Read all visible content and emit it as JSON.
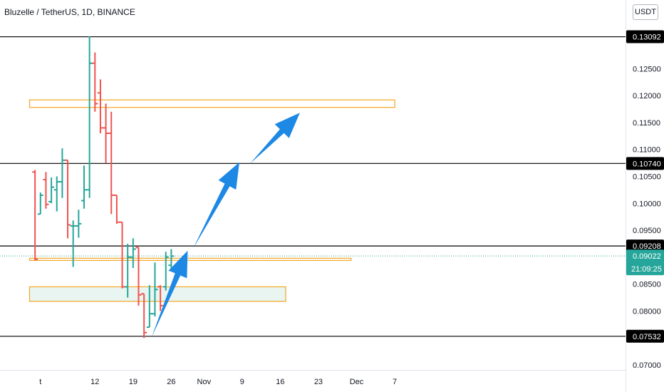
{
  "header": {
    "symbol_title": "Bluzelle / TetherUS, 1D, BINANCE",
    "currency": "USDT"
  },
  "colors": {
    "up": "#26a69a",
    "down": "#ef5350",
    "arrow": "#1e88e5",
    "zone_border": "#f5a623",
    "zone_fill": "#e8f5f0",
    "level_line": "#000000",
    "price_line": "#26a69a"
  },
  "price_badges": {
    "level_1": "0.13092",
    "level_2": "0.10740",
    "level_3": "0.09208",
    "current": "0.09022",
    "countdown": "21:09:25",
    "level_4": "0.07532"
  },
  "chart_data": {
    "type": "ohlc",
    "x_axis": {
      "tick_labels": [
        "t",
        "12",
        "19",
        "26",
        "Nov",
        "9",
        "16",
        "23",
        "Dec",
        "7"
      ],
      "tick_days": [
        2,
        12,
        19,
        26,
        32,
        39,
        46,
        53,
        60,
        67
      ]
    },
    "y_axis": {
      "ticks": [
        0.125,
        0.12,
        0.115,
        0.11,
        0.105,
        0.1,
        0.095,
        0.085,
        0.08,
        0.07
      ],
      "tick_labels": [
        "0.12500",
        "0.12000",
        "0.11500",
        "0.11000",
        "0.10500",
        "0.10000",
        "0.09500",
        "0.08500",
        "0.08000",
        "0.07000"
      ],
      "range": [
        0.0695,
        0.1325
      ]
    },
    "bars": [
      {
        "day": 1,
        "o": 0.1058,
        "h": 0.1062,
        "l": 0.0894,
        "c": 0.0896
      },
      {
        "day": 2,
        "o": 0.098,
        "h": 0.102,
        "l": 0.098,
        "c": 0.1015
      },
      {
        "day": 3,
        "o": 0.1044,
        "h": 0.1058,
        "l": 0.099,
        "c": 0.0998
      },
      {
        "day": 4,
        "o": 0.1003,
        "h": 0.1048,
        "l": 0.1,
        "c": 0.103
      },
      {
        "day": 5,
        "o": 0.1025,
        "h": 0.105,
        "l": 0.0985,
        "c": 0.104
      },
      {
        "day": 6,
        "o": 0.104,
        "h": 0.1102,
        "l": 0.101,
        "c": 0.108
      },
      {
        "day": 7,
        "o": 0.108,
        "h": 0.108,
        "l": 0.0935,
        "c": 0.096
      },
      {
        "day": 8,
        "o": 0.0958,
        "h": 0.0968,
        "l": 0.0882,
        "c": 0.0958
      },
      {
        "day": 9,
        "o": 0.0958,
        "h": 0.0988,
        "l": 0.0936,
        "c": 0.0962
      },
      {
        "day": 10,
        "o": 0.1005,
        "h": 0.107,
        "l": 0.099,
        "c": 0.1025
      },
      {
        "day": 11,
        "o": 0.1025,
        "h": 0.131,
        "l": 0.101,
        "c": 0.126
      },
      {
        "day": 12,
        "o": 0.126,
        "h": 0.128,
        "l": 0.117,
        "c": 0.1185
      },
      {
        "day": 13,
        "o": 0.1205,
        "h": 0.123,
        "l": 0.113,
        "c": 0.114
      },
      {
        "day": 14,
        "o": 0.114,
        "h": 0.1185,
        "l": 0.1075,
        "c": 0.113
      },
      {
        "day": 15,
        "o": 0.113,
        "h": 0.117,
        "l": 0.098,
        "c": 0.1015
      },
      {
        "day": 16,
        "o": 0.1015,
        "h": 0.1015,
        "l": 0.0962,
        "c": 0.0965
      },
      {
        "day": 17,
        "o": 0.0965,
        "h": 0.0965,
        "l": 0.0842,
        "c": 0.0845
      },
      {
        "day": 18,
        "o": 0.0845,
        "h": 0.0925,
        "l": 0.0825,
        "c": 0.09
      },
      {
        "day": 19,
        "o": 0.09,
        "h": 0.0935,
        "l": 0.088,
        "c": 0.0915
      },
      {
        "day": 20,
        "o": 0.0918,
        "h": 0.0918,
        "l": 0.081,
        "c": 0.083
      },
      {
        "day": 21,
        "o": 0.0832,
        "h": 0.0832,
        "l": 0.075,
        "c": 0.076
      },
      {
        "day": 22,
        "o": 0.077,
        "h": 0.0848,
        "l": 0.077,
        "c": 0.0795
      },
      {
        "day": 23,
        "o": 0.0795,
        "h": 0.089,
        "l": 0.079,
        "c": 0.084
      },
      {
        "day": 24,
        "o": 0.0845,
        "h": 0.0848,
        "l": 0.08,
        "c": 0.081
      },
      {
        "day": 25,
        "o": 0.0845,
        "h": 0.091,
        "l": 0.0838,
        "c": 0.09
      },
      {
        "day": 26,
        "o": 0.0885,
        "h": 0.0915,
        "l": 0.0875,
        "c": 0.0902
      }
    ],
    "horizontal_levels": [
      0.13092,
      0.1074,
      0.09208,
      0.07532
    ],
    "zones": [
      {
        "from_day": 0,
        "to_day": 67,
        "low": 0.1178,
        "high": 0.1192,
        "fill": false
      },
      {
        "from_day": 0,
        "to_day": 59,
        "low": 0.0894,
        "high": 0.0898,
        "fill": false
      },
      {
        "from_day": 0,
        "to_day": 47,
        "low": 0.0818,
        "high": 0.0845,
        "fill": true
      }
    ],
    "arrows": [
      {
        "from": {
          "day": 22.4,
          "price": 0.0752
        },
        "to": {
          "day": 29,
          "price": 0.0912
        }
      },
      {
        "from": {
          "day": 30,
          "price": 0.0916
        },
        "to": {
          "day": 38.5,
          "price": 0.1076
        }
      },
      {
        "from": {
          "day": 40.5,
          "price": 0.1074
        },
        "to": {
          "day": 49.6,
          "price": 0.1168
        }
      }
    ],
    "current_price": 0.09022
  }
}
